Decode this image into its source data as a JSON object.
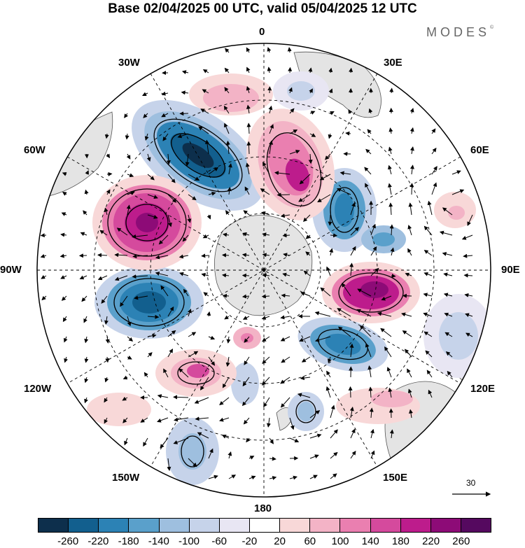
{
  "title": "Base 02/04/2025 00 UTC, valid 05/04/2025 12 UTC",
  "brand": "MODES",
  "brand_mark": "©",
  "longitude_labels": [
    "0",
    "30E",
    "60E",
    "90E",
    "120E",
    "150E",
    "180",
    "150W",
    "120W",
    "90W",
    "60W",
    "30W"
  ],
  "reference_vector": {
    "label": "30"
  },
  "colorbar": {
    "ticks": [
      "-260",
      "-220",
      "-180",
      "-140",
      "-100",
      "-60",
      "-20",
      "20",
      "60",
      "100",
      "140",
      "180",
      "220",
      "260"
    ],
    "colors": [
      "#0d2f4c",
      "#125f8e",
      "#2c82b5",
      "#5aa0cb",
      "#9ebfdf",
      "#c6d3ea",
      "#e8e6f3",
      "#ffffff",
      "#f8d8d8",
      "#f3b3c6",
      "#ea7fb0",
      "#d54a9d",
      "#bd1c8c",
      "#8d0b77",
      "#55095f"
    ]
  }
}
